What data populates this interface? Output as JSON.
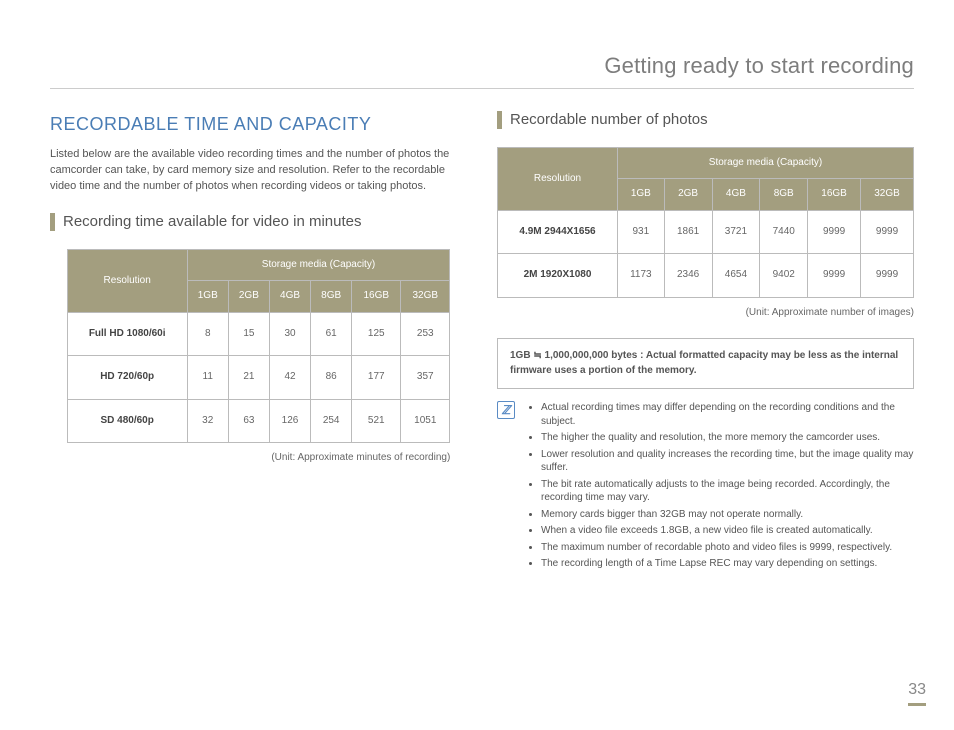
{
  "page": {
    "header": "Getting ready to start recording",
    "main_heading": "RECORDABLE TIME AND CAPACITY",
    "intro": "Listed below are the available video recording times and the number of photos the camcorder can take, by card memory size and resolution. Refer to the recordable video time and the number of photos when recording videos or taking photos.",
    "page_number": "33"
  },
  "colors": {
    "table_header_bg": "#a39e7f",
    "heading_link": "#4a7db5",
    "accent_bar": "#a39e7f"
  },
  "video_section": {
    "heading": "Recording time available for video in minutes",
    "res_label": "Resolution",
    "storage_label": "Storage media (Capacity)",
    "columns": [
      "1GB",
      "2GB",
      "4GB",
      "8GB",
      "16GB",
      "32GB"
    ],
    "rows": [
      {
        "label": "Full HD  1080/60i",
        "values": [
          "8",
          "15",
          "30",
          "61",
          "125",
          "253"
        ]
      },
      {
        "label": "HD  720/60p",
        "values": [
          "11",
          "21",
          "42",
          "86",
          "177",
          "357"
        ]
      },
      {
        "label": "SD  480/60p",
        "values": [
          "32",
          "63",
          "126",
          "254",
          "521",
          "1051"
        ]
      }
    ],
    "unit_note": "(Unit: Approximate minutes of recording)"
  },
  "photo_section": {
    "heading": "Recordable number of photos",
    "res_label": "Resolution",
    "storage_label": "Storage media (Capacity)",
    "columns": [
      "1GB",
      "2GB",
      "4GB",
      "8GB",
      "16GB",
      "32GB"
    ],
    "rows": [
      {
        "label": "4.9M  2944X1656",
        "values": [
          "931",
          "1861",
          "3721",
          "7440",
          "9999",
          "9999"
        ]
      },
      {
        "label": "2M  1920X1080",
        "values": [
          "1173",
          "2346",
          "4654",
          "9402",
          "9999",
          "9999"
        ]
      }
    ],
    "unit_note": "(Unit: Approximate number of images)"
  },
  "info_box": "1GB ≒ 1,000,000,000 bytes : Actual formatted capacity may be less as the internal firmware uses a portion of the memory.",
  "notes": [
    "Actual recording times may differ depending on the recording conditions and the subject.",
    "The higher the quality and resolution, the more memory the camcorder uses.",
    "Lower resolution and quality increases the recording time, but the image quality may suffer.",
    "The bit rate automatically adjusts to the image being recorded. Accordingly, the recording time may vary.",
    "Memory cards bigger than 32GB may not operate normally.",
    "When a video file exceeds 1.8GB, a new video file is created automatically.",
    "The maximum number of recordable photo and video files is 9999, respectively.",
    "The recording length of a Time Lapse REC may vary depending on settings."
  ]
}
